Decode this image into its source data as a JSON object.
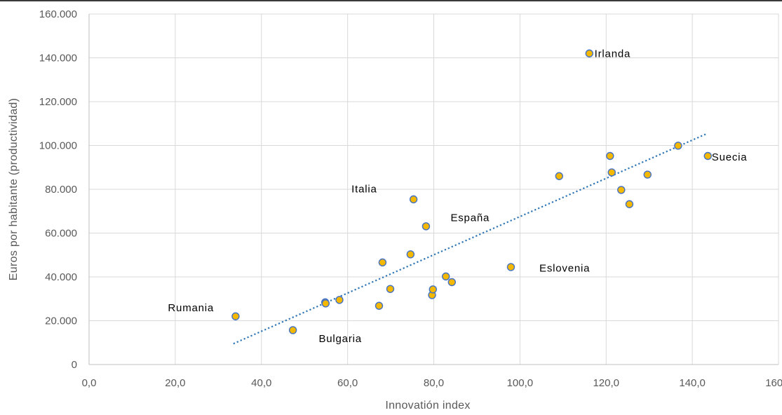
{
  "chart_data": {
    "type": "scatter",
    "title": "",
    "xlabel": "Innovatión index",
    "ylabel": "Euros por habitante (productividad)",
    "xlim": [
      0,
      160
    ],
    "ylim": [
      0,
      160000
    ],
    "x_ticks": [
      "0,0",
      "20,0",
      "40,0",
      "60,0",
      "80,0",
      "100,0",
      "120,0",
      "140,0",
      "160,0"
    ],
    "y_ticks": [
      "0",
      "20.000",
      "40.000",
      "60.000",
      "80.000",
      "100.000",
      "120.000",
      "140.000",
      "160.000"
    ],
    "grid": true,
    "marker_color": "#F5B800",
    "marker_edge_color": "#4472C4",
    "trendline_color": "#2E75B6",
    "points": [
      {
        "x": 34.0,
        "y": 22000
      },
      {
        "x": 47.3,
        "y": 15700
      },
      {
        "x": 54.8,
        "y": 28400
      },
      {
        "x": 54.9,
        "y": 27900
      },
      {
        "x": 58.1,
        "y": 29500
      },
      {
        "x": 67.3,
        "y": 26800
      },
      {
        "x": 68.1,
        "y": 46600
      },
      {
        "x": 69.9,
        "y": 34500
      },
      {
        "x": 74.6,
        "y": 50300
      },
      {
        "x": 75.3,
        "y": 75400
      },
      {
        "x": 78.2,
        "y": 63100
      },
      {
        "x": 79.6,
        "y": 31700
      },
      {
        "x": 79.8,
        "y": 34300
      },
      {
        "x": 82.8,
        "y": 40200
      },
      {
        "x": 84.2,
        "y": 37600
      },
      {
        "x": 97.9,
        "y": 44500
      },
      {
        "x": 109.1,
        "y": 86000
      },
      {
        "x": 116.1,
        "y": 142000
      },
      {
        "x": 120.9,
        "y": 95200
      },
      {
        "x": 121.3,
        "y": 87700
      },
      {
        "x": 123.5,
        "y": 79700
      },
      {
        "x": 125.4,
        "y": 73200
      },
      {
        "x": 129.6,
        "y": 86700
      },
      {
        "x": 136.7,
        "y": 99900
      },
      {
        "x": 143.6,
        "y": 95200
      }
    ],
    "trendline": {
      "x": [
        33.5,
        143.5
      ],
      "y": [
        9500,
        105500
      ]
    },
    "annotations": [
      {
        "text": "Irlanda",
        "x": 117.3,
        "y": 142000
      },
      {
        "text": "Suecia",
        "x": 144.5,
        "y": 94800
      },
      {
        "text": "Italia",
        "x": 60.9,
        "y": 80100
      },
      {
        "text": "España",
        "x": 83.9,
        "y": 67100
      },
      {
        "text": "Eslovenia",
        "x": 104.5,
        "y": 44000
      },
      {
        "text": "Rumania",
        "x": 18.3,
        "y": 25900
      },
      {
        "text": "Bulgaria",
        "x": 53.3,
        "y": 11900
      }
    ]
  }
}
